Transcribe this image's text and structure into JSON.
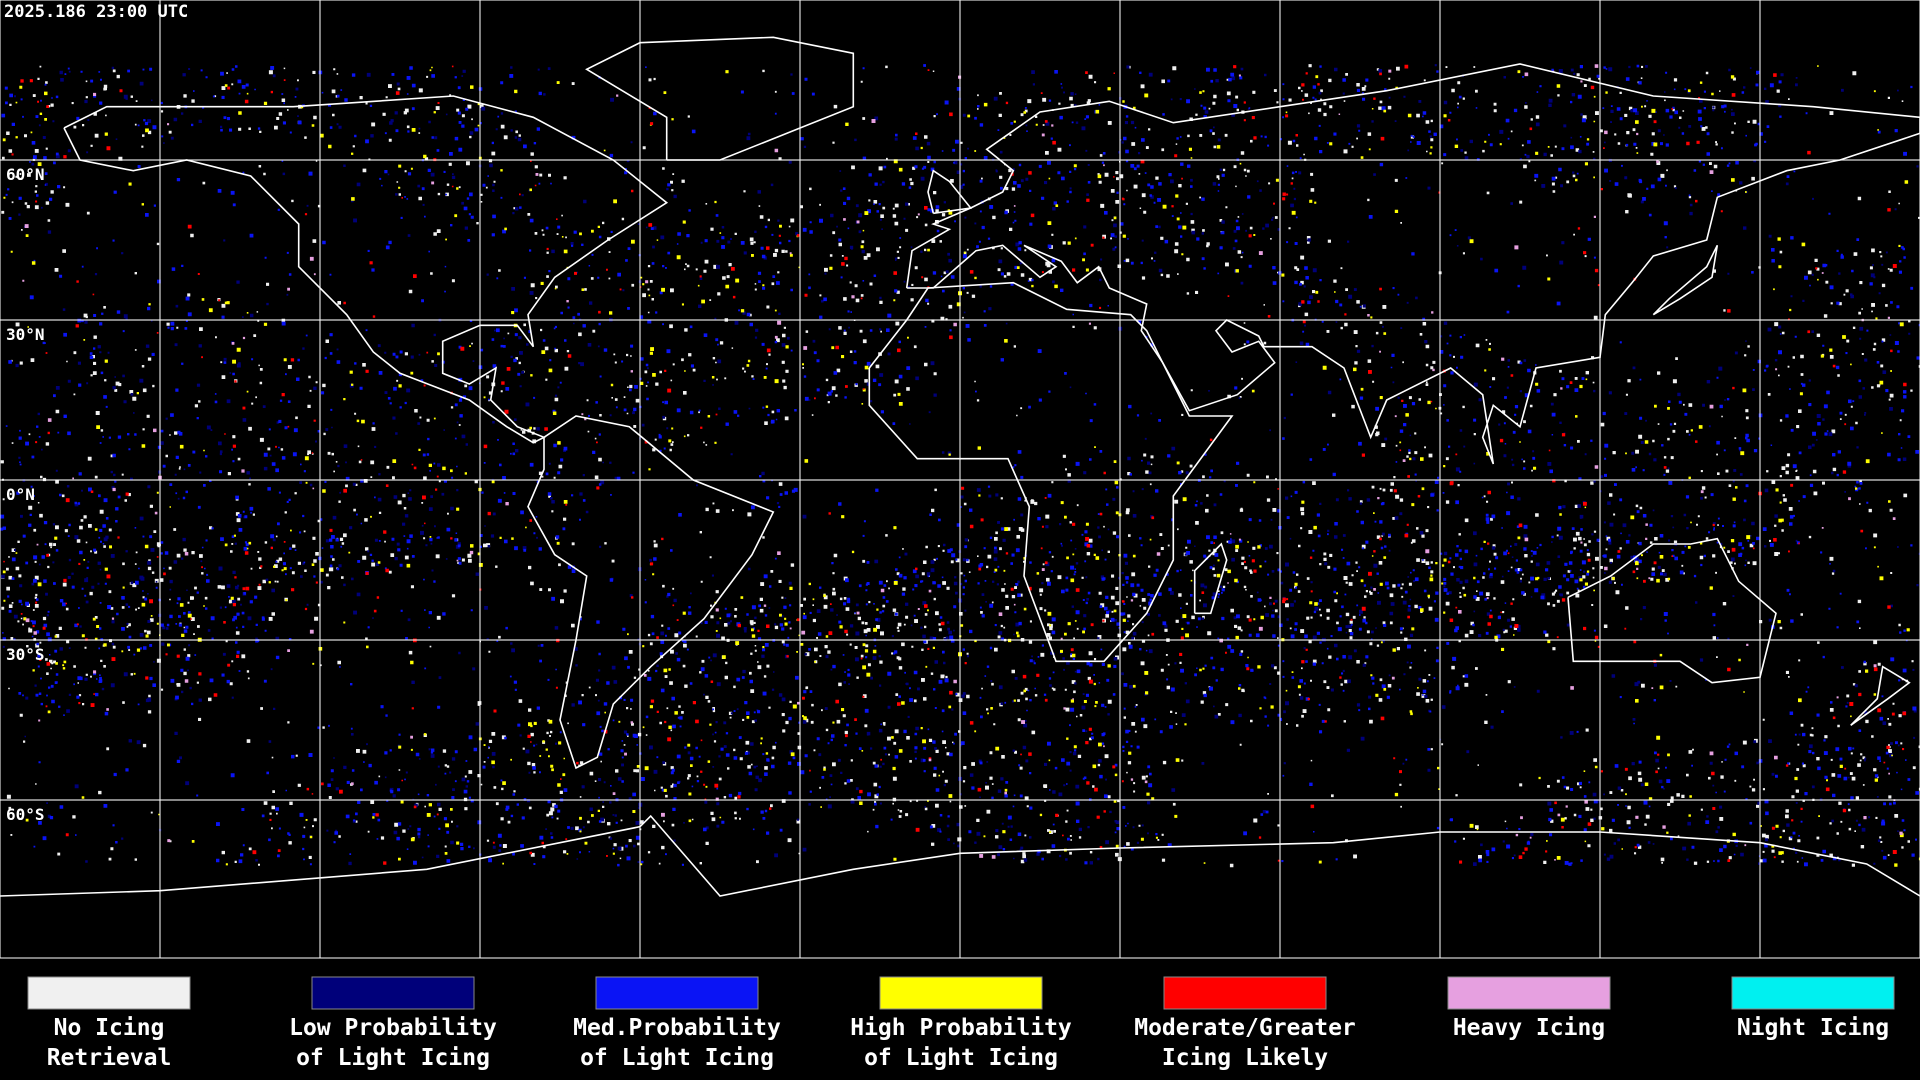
{
  "header": {
    "timestamp": "2025.186 23:00 UTC"
  },
  "map": {
    "lat_labels": [
      "60°N",
      "30°N",
      "0°N",
      "30°S",
      "60°S"
    ]
  },
  "legend": [
    {
      "color": "#f0f0f0",
      "label": [
        "No Icing",
        "Retrieval"
      ]
    },
    {
      "color": "#00007a",
      "label": [
        "Low Probability",
        "of Light Icing"
      ]
    },
    {
      "color": "#0a14f5",
      "label": [
        "Med.Probability",
        "of Light Icing"
      ]
    },
    {
      "color": "#ffff00",
      "label": [
        "High Probability",
        "of Light Icing"
      ]
    },
    {
      "color": "#ff0000",
      "label": [
        "Moderate/Greater",
        "Icing Likely"
      ]
    },
    {
      "color": "#e6a0e0",
      "label": [
        "Heavy Icing"
      ]
    },
    {
      "color": "#00f0f0",
      "label": [
        "Night Icing"
      ]
    }
  ]
}
